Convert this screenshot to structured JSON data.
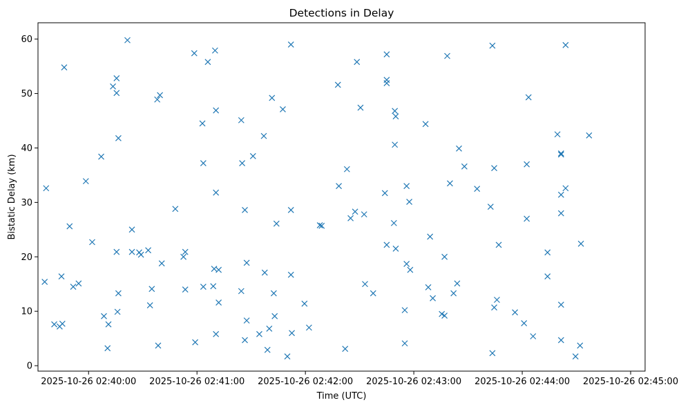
{
  "chart_data": {
    "type": "scatter",
    "title": "Detections in Delay",
    "xlabel": "Time (UTC)",
    "ylabel": "Bistatic Delay (km)",
    "marker": "x",
    "color": "#1f77b4",
    "x_unit": "seconds after 2025-10-26 02:40:00 UTC",
    "xlim": [
      -28,
      308
    ],
    "ylim": [
      -1,
      63
    ],
    "x_ticks": [
      {
        "value": 0,
        "label": "2025-10-26 02:40:00"
      },
      {
        "value": 60,
        "label": "2025-10-26 02:41:00"
      },
      {
        "value": 120,
        "label": "2025-10-26 02:42:00"
      },
      {
        "value": 180,
        "label": "2025-10-26 02:43:00"
      },
      {
        "value": 240,
        "label": "2025-10-26 02:44:00"
      },
      {
        "value": 300,
        "label": "2025-10-26 02:45:00"
      }
    ],
    "y_ticks": [
      {
        "value": 0,
        "label": "0"
      },
      {
        "value": 10,
        "label": "10"
      },
      {
        "value": 20,
        "label": "20"
      },
      {
        "value": 30,
        "label": "30"
      },
      {
        "value": 40,
        "label": "40"
      },
      {
        "value": 50,
        "label": "50"
      },
      {
        "value": 60,
        "label": "60"
      }
    ],
    "points": [
      [
        -23.5,
        32.6
      ],
      [
        -24.3,
        15.4
      ],
      [
        -19,
        7.6
      ],
      [
        -16,
        7.2
      ],
      [
        -14.5,
        7.7
      ],
      [
        -15,
        16.4
      ],
      [
        -13.5,
        54.8
      ],
      [
        -10.5,
        25.6
      ],
      [
        -8.5,
        14.5
      ],
      [
        -5.5,
        15.1
      ],
      [
        -1.5,
        33.9
      ],
      [
        2,
        22.7
      ],
      [
        7,
        38.4
      ],
      [
        8.5,
        9.1
      ],
      [
        10.5,
        3.2
      ],
      [
        11,
        7.6
      ],
      [
        13.5,
        51.3
      ],
      [
        15.5,
        52.8
      ],
      [
        15.5,
        50.1
      ],
      [
        15.5,
        20.9
      ],
      [
        16.5,
        41.8
      ],
      [
        16.5,
        13.3
      ],
      [
        16,
        9.9
      ],
      [
        21.5,
        59.8
      ],
      [
        24,
        25
      ],
      [
        24,
        20.9
      ],
      [
        28,
        20.8
      ],
      [
        29,
        20.4
      ],
      [
        33,
        21.2
      ],
      [
        34,
        11.1
      ],
      [
        35,
        14.1
      ],
      [
        38,
        48.9
      ],
      [
        39.5,
        49.7
      ],
      [
        40.5,
        18.8
      ],
      [
        38.5,
        3.7
      ],
      [
        48,
        28.8
      ],
      [
        52.5,
        20
      ],
      [
        53.5,
        20.9
      ],
      [
        53.5,
        14
      ],
      [
        58.5,
        57.4
      ],
      [
        59,
        4.3
      ],
      [
        63,
        44.5
      ],
      [
        63.5,
        37.2
      ],
      [
        63.5,
        14.5
      ],
      [
        66,
        55.8
      ],
      [
        69,
        14.6
      ],
      [
        69.5,
        17.8
      ],
      [
        70,
        57.9
      ],
      [
        70.5,
        46.9
      ],
      [
        70.5,
        31.8
      ],
      [
        70.5,
        5.8
      ],
      [
        72,
        11.6
      ],
      [
        72,
        17.6
      ],
      [
        84.5,
        45.1
      ],
      [
        85,
        37.2
      ],
      [
        84.5,
        13.7
      ],
      [
        86.5,
        28.6
      ],
      [
        86.5,
        4.7
      ],
      [
        87.5,
        18.9
      ],
      [
        87.5,
        8.3
      ],
      [
        91,
        38.5
      ],
      [
        94.5,
        5.8
      ],
      [
        97,
        42.2
      ],
      [
        97.5,
        17.1
      ],
      [
        99,
        2.9
      ],
      [
        100,
        6.8
      ],
      [
        101.5,
        49.2
      ],
      [
        102.5,
        13.3
      ],
      [
        103,
        9.1
      ],
      [
        104,
        26.1
      ],
      [
        107.5,
        47.1
      ],
      [
        110,
        1.7
      ],
      [
        112,
        59
      ],
      [
        112,
        28.6
      ],
      [
        112,
        16.7
      ],
      [
        112.5,
        6
      ],
      [
        119.5,
        11.4
      ],
      [
        122,
        7
      ],
      [
        128,
        25.8
      ],
      [
        129,
        25.7
      ],
      [
        138,
        51.6
      ],
      [
        138.5,
        33
      ],
      [
        142,
        3.1
      ],
      [
        143,
        36.1
      ],
      [
        145,
        27.1
      ],
      [
        147.5,
        28.3
      ],
      [
        148.5,
        55.8
      ],
      [
        150.5,
        47.4
      ],
      [
        152.5,
        27.8
      ],
      [
        153,
        15
      ],
      [
        157.5,
        13.3
      ],
      [
        164,
        31.7
      ],
      [
        165,
        57.2
      ],
      [
        165,
        52.5
      ],
      [
        165,
        51.9
      ],
      [
        165,
        22.2
      ],
      [
        169,
        26.2
      ],
      [
        169.5,
        46.8
      ],
      [
        170,
        45.8
      ],
      [
        169.5,
        40.6
      ],
      [
        170,
        21.5
      ],
      [
        175,
        10.2
      ],
      [
        175,
        4.1
      ],
      [
        176,
        33
      ],
      [
        176,
        18.7
      ],
      [
        177.5,
        30.1
      ],
      [
        178,
        17.6
      ],
      [
        186.5,
        44.4
      ],
      [
        188,
        14.4
      ],
      [
        189,
        23.7
      ],
      [
        190.5,
        12.4
      ],
      [
        195.5,
        9.5
      ],
      [
        197,
        20
      ],
      [
        197,
        9.2
      ],
      [
        198.5,
        56.9
      ],
      [
        200,
        33.5
      ],
      [
        202,
        13.3
      ],
      [
        204,
        15.1
      ],
      [
        205,
        39.9
      ],
      [
        208,
        36.6
      ],
      [
        215,
        32.5
      ],
      [
        222.5,
        29.2
      ],
      [
        223.5,
        58.8
      ],
      [
        223.5,
        2.3
      ],
      [
        224.5,
        36.3
      ],
      [
        224.5,
        10.7
      ],
      [
        226,
        12.1
      ],
      [
        227,
        22.2
      ],
      [
        236,
        9.8
      ],
      [
        241,
        7.8
      ],
      [
        242.5,
        37
      ],
      [
        242.5,
        27
      ],
      [
        243.5,
        49.3
      ],
      [
        246,
        5.4
      ],
      [
        254,
        20.8
      ],
      [
        254,
        16.4
      ],
      [
        259.5,
        42.5
      ],
      [
        261.5,
        39
      ],
      [
        261.5,
        38.8
      ],
      [
        261.5,
        31.4
      ],
      [
        261.5,
        28
      ],
      [
        261.5,
        11.2
      ],
      [
        261.5,
        4.7
      ],
      [
        264,
        58.9
      ],
      [
        264,
        32.6
      ],
      [
        269.5,
        1.7
      ],
      [
        272,
        3.7
      ],
      [
        272.5,
        22.4
      ],
      [
        277,
        42.3
      ]
    ]
  }
}
